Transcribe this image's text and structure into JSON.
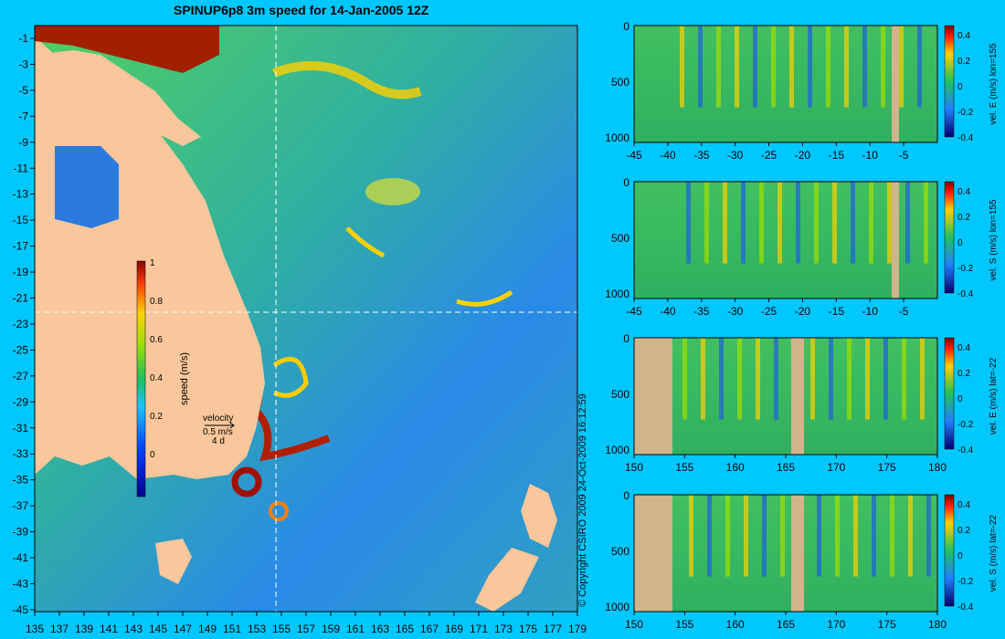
{
  "title": "SPINUP6p8 3m speed for 14-Jan-2005 12Z",
  "copyright": "© Copyright CSIRO 2009   24-Oct-2009 16:12:59",
  "map": {
    "x_ticks": [
      "135",
      "137",
      "139",
      "141",
      "143",
      "145",
      "147",
      "149",
      "151",
      "153",
      "155",
      "157",
      "159",
      "161",
      "163",
      "165",
      "167",
      "169",
      "171",
      "173",
      "175",
      "177",
      "179"
    ],
    "y_ticks": [
      "-1",
      "-3",
      "-5",
      "-7",
      "-9",
      "-11",
      "-13",
      "-15",
      "-17",
      "-19",
      "-21",
      "-23",
      "-25",
      "-27",
      "-29",
      "-31",
      "-33",
      "-35",
      "-37",
      "-39",
      "-41",
      "-43",
      "-45"
    ],
    "colorbar_label": "speed (m/s)",
    "colorbar_ticks": [
      "1",
      "0.8",
      "0.6",
      "0.4",
      "0.2",
      "0"
    ],
    "velocity_legend": {
      "title": "velocity",
      "scale": "0.5 m/s",
      "duration": "4 d"
    },
    "colors": {
      "land": "#f9c79b",
      "ocean_low": "#1f6fe0",
      "ocean_mid": "#20c060",
      "ocean_high": "#ffd000",
      "ocean_max": "#9b1a00"
    }
  },
  "chart_data": [
    {
      "type": "heatmap",
      "title": "SPINUP6p8 3m speed for 14-Jan-2005 12Z",
      "xlim": [
        135,
        180
      ],
      "ylim": [
        -45,
        0
      ],
      "colorbar_label": "speed (m/s)",
      "colorbar_range": [
        0,
        1
      ],
      "section_lines": {
        "lon": 155,
        "lat": -22
      }
    },
    {
      "type": "heatmap",
      "label": "vel. E (m/s) lon=155",
      "x_ticks": [
        "-45",
        "-40",
        "-35",
        "-30",
        "-25",
        "-20",
        "-15",
        "-10",
        "-5"
      ],
      "y_ticks": [
        "0",
        "500",
        "1000"
      ],
      "cbar_ticks": [
        "0.4",
        "0.2",
        "0",
        "-0.2",
        "-0.4"
      ],
      "xlim": [
        -45,
        0
      ],
      "ylim": [
        1050,
        0
      ]
    },
    {
      "type": "heatmap",
      "label": "vel. S (m/s) lon=155",
      "x_ticks": [
        "-45",
        "-40",
        "-35",
        "-30",
        "-25",
        "-20",
        "-15",
        "-10",
        "-5"
      ],
      "y_ticks": [
        "0",
        "500",
        "1000"
      ],
      "cbar_ticks": [
        "0.4",
        "0.2",
        "0",
        "-0.2",
        "-0.4"
      ],
      "xlim": [
        -45,
        0
      ],
      "ylim": [
        1050,
        0
      ]
    },
    {
      "type": "heatmap",
      "label": "vel. E (m/s) lat=-22",
      "x_ticks": [
        "150",
        "155",
        "160",
        "165",
        "170",
        "175",
        "180"
      ],
      "y_ticks": [
        "0",
        "500",
        "1000"
      ],
      "cbar_ticks": [
        "0.4",
        "0.2",
        "0",
        "-0.2",
        "-0.4"
      ],
      "xlim": [
        150,
        180
      ],
      "ylim": [
        1050,
        0
      ]
    },
    {
      "type": "heatmap",
      "label": "vel. S (m/s) lat=-22",
      "x_ticks": [
        "150",
        "155",
        "160",
        "165",
        "170",
        "175",
        "180"
      ],
      "y_ticks": [
        "0",
        "500",
        "1000"
      ],
      "cbar_ticks": [
        "0.4",
        "0.2",
        "0",
        "-0.2",
        "-0.4"
      ],
      "xlim": [
        150,
        180
      ],
      "ylim": [
        1050,
        0
      ]
    }
  ]
}
